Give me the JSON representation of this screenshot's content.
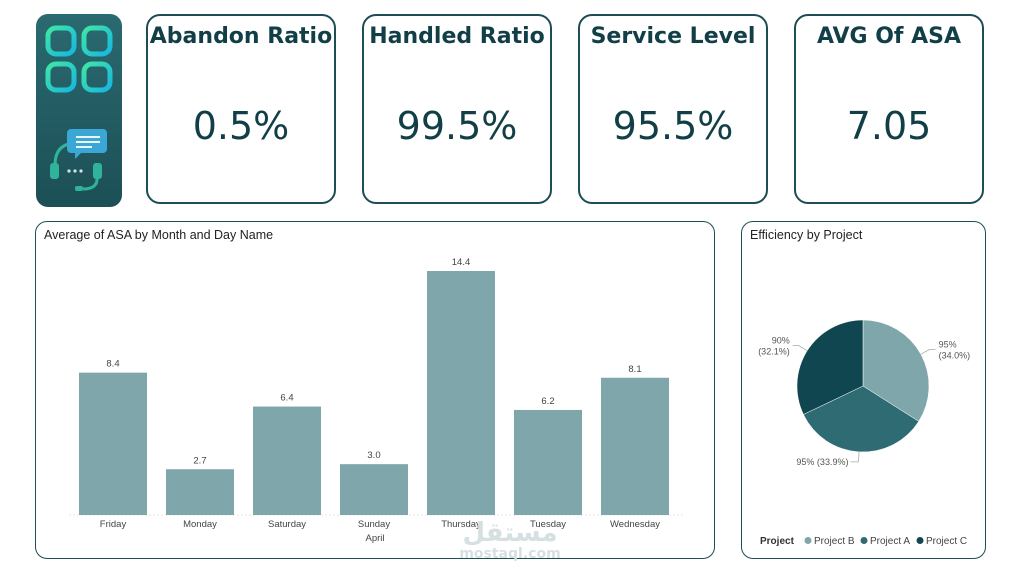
{
  "kpis": [
    {
      "title": "Abandon Ratio",
      "value": "0.5%"
    },
    {
      "title": "Handled Ratio",
      "value": "99.5%"
    },
    {
      "title": "Service Level",
      "value": "95.5%"
    },
    {
      "title": "AVG Of ASA",
      "value": "7.05"
    }
  ],
  "bar_panel": {
    "title": "Average of ASA by Month and Day Name",
    "group_label": "April"
  },
  "pie_panel": {
    "title": "Efficiency by Project",
    "legend_title": "Project"
  },
  "watermark": {
    "arabic": "مستقل",
    "latin": "mostaql.com"
  },
  "icons": [
    "apps-grid-icon",
    "headset-chat-icon"
  ],
  "colors": {
    "bar": "#7fa6ab",
    "project_b": "#7fa6ab",
    "project_a": "#2e6b73",
    "project_c": "#0f4650",
    "kpi_border": "#1d4d55"
  },
  "chart_data": [
    {
      "type": "bar",
      "title": "Average of ASA by Month and Day Name",
      "categories": [
        "Friday",
        "Monday",
        "Saturday",
        "Sunday",
        "Thursday",
        "Tuesday",
        "Wednesday"
      ],
      "values": [
        8.4,
        2.7,
        6.4,
        3.0,
        14.4,
        6.2,
        8.1
      ],
      "data_labels": [
        "8.4",
        "2.7",
        "6.4",
        "3.0",
        "14.4",
        "6.2",
        "8.1"
      ],
      "group": "April",
      "ylim": [
        0,
        14.4
      ],
      "grid": false
    },
    {
      "type": "pie",
      "title": "Efficiency by Project",
      "legend_title": "Project",
      "legend_position": "bottom",
      "slices": [
        {
          "name": "Project B",
          "value": 95,
          "share": 34.0,
          "label": "95%",
          "sublabel": "(34.0%)"
        },
        {
          "name": "Project A",
          "value": 95,
          "share": 33.9,
          "label": "95% (33.9%)",
          "sublabel": ""
        },
        {
          "name": "Project C",
          "value": 90,
          "share": 32.1,
          "label": "90%",
          "sublabel": "(32.1%)"
        }
      ]
    }
  ]
}
